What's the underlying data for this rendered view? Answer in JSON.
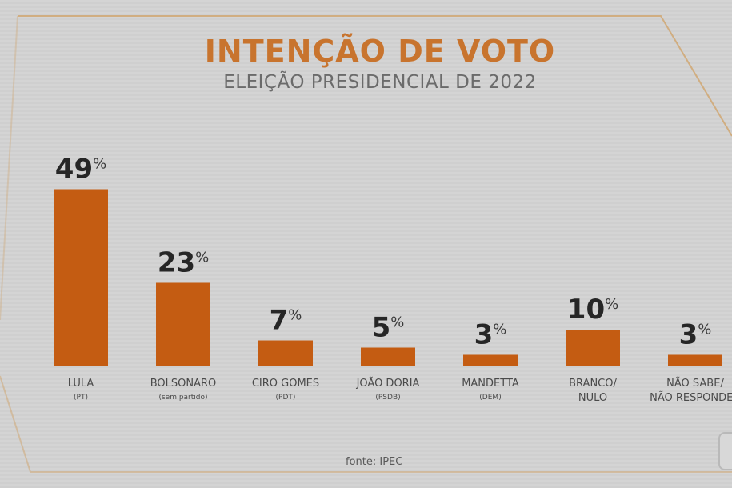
{
  "header": {
    "title": "INTENÇÃO DE VOTO",
    "subtitle": "ELEIÇÃO PRESIDENCIAL DE 2022"
  },
  "footer": {
    "source": "fonte: IPEC"
  },
  "colors": {
    "bar": "#c45c12",
    "title": "#c8742e",
    "frame": "#cfa46c",
    "background": "#cfcfcf"
  },
  "chart_data": {
    "type": "bar",
    "title": "INTENÇÃO DE VOTO",
    "subtitle": "ELEIÇÃO PRESIDENCIAL DE 2022",
    "xlabel": "",
    "ylabel": "",
    "unit": "%",
    "grid": false,
    "legend": "none",
    "ylim": [
      0,
      50
    ],
    "categories": [
      {
        "name": "LULA",
        "sub": "(PT)"
      },
      {
        "name": "BOLSONARO",
        "sub": "(sem partido)"
      },
      {
        "name": "CIRO GOMES",
        "sub": "(PDT)"
      },
      {
        "name": "JOÃO DORIA",
        "sub": "(PSDB)"
      },
      {
        "name": "MANDETTA",
        "sub": "(DEM)"
      },
      {
        "name": "BRANCO/",
        "sub": "NULO"
      },
      {
        "name": "NÃO SABE/",
        "sub": "NÃO RESPONDEU"
      }
    ],
    "values": [
      49,
      23,
      7,
      5,
      3,
      10,
      3
    ],
    "data_labels": [
      "49",
      "23",
      "7",
      "5",
      "3",
      "10",
      "3"
    ]
  }
}
